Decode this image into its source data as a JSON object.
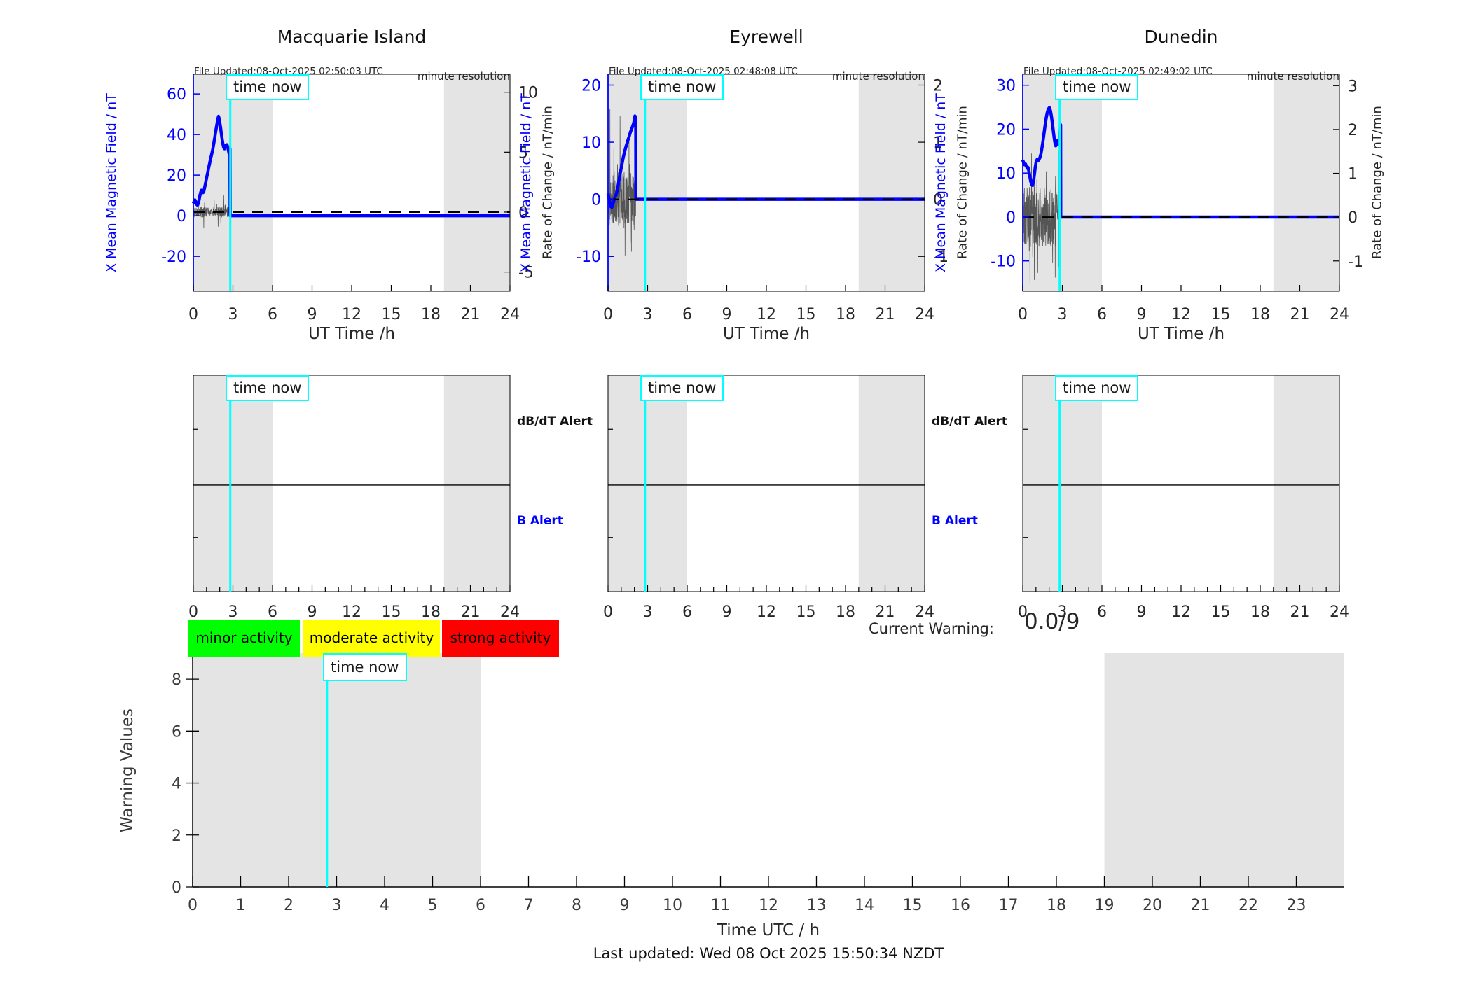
{
  "stations": [
    {
      "title": "Macquarie Island",
      "file_updated": "File Updated:08-Oct-2025 02:50:03 UTC",
      "resolution_note": "minute resolution",
      "time_now_label": "time now",
      "y_left_label": "X Mean Magnetic Field / nT",
      "y_right_label": "Rate of Change / nT/min",
      "x_label": "UT Time /h"
    },
    {
      "title": "Eyrewell",
      "file_updated": "File Updated:08-Oct-2025 02:48:08 UTC",
      "resolution_note": "minute resolution",
      "time_now_label": "time now",
      "y_left_label": "X Mean Magnetic Field / nT",
      "y_right_label": "Rate of Change / nT/min",
      "x_label": "UT Time /h"
    },
    {
      "title": "Dunedin",
      "file_updated": "File Updated:08-Oct-2025 02:49:02 UTC",
      "resolution_note": "minute resolution",
      "time_now_label": "time now",
      "y_left_label": "X Mean Magnetic Field / nT",
      "y_right_label": "Rate of Change / nT/min",
      "x_label": "UT Time /h"
    }
  ],
  "alerts": {
    "dbdt_label": "dB/dT Alert",
    "b_label": "B Alert",
    "time_now_label": "time now",
    "labeled_panels": [
      0,
      1
    ],
    "xticks": [
      0,
      3,
      6,
      9,
      12,
      15,
      18,
      21,
      24
    ],
    "night_shading_hours": [
      [
        0,
        6
      ],
      [
        19,
        24
      ]
    ],
    "time_now_h": 2.8
  },
  "legend": {
    "items": [
      {
        "label": "minor activity",
        "color": "#00ff00"
      },
      {
        "label": "moderate activity",
        "color": "#ffff00"
      },
      {
        "label": "strong activity",
        "color": "#ff0000"
      }
    ]
  },
  "current_warning": {
    "label": "Current Warning:",
    "value": "0.0/9"
  },
  "warning_panel": {
    "y_label": "Warning Values",
    "x_label": "Time UTC / h",
    "time_now_label": "time now"
  },
  "footer": {
    "last_updated": "Last updated: Wed 08 Oct 2025 15:50:34 NZDT"
  },
  "colors": {
    "accent_blue": "#0000ff",
    "cyan": "#00ffff",
    "band_gray": "#e4e4e4",
    "text_dark": "#262626",
    "noise_gray": "#555555",
    "legend_green": "#00ff00",
    "legend_yellow": "#ffff00",
    "legend_red": "#ff0000"
  },
  "chart_data": [
    {
      "id": "macquarie-island-field",
      "type": "line",
      "title": "Macquarie Island",
      "xlabel": "UT Time /h",
      "ylabel": "X Mean Magnetic Field / nT",
      "ylabel_right": "Rate of Change / nT/min",
      "xlim": [
        0,
        24
      ],
      "xticks": [
        0,
        3,
        6,
        9,
        12,
        15,
        18,
        21,
        24
      ],
      "ylim": [
        -37.2,
        69.7
      ],
      "yticks": [
        60,
        40,
        20,
        0,
        -20
      ],
      "ylim_right": [
        -6.6,
        11.5
      ],
      "yticks_right": [
        10,
        5,
        0,
        -5
      ],
      "night_shading_hours": [
        [
          0,
          6
        ],
        [
          19,
          24
        ]
      ],
      "time_now_h": 2.8,
      "series": [
        {
          "name": "X mean magnetic field (nT)",
          "color": "#0000ff",
          "points": [
            [
              0,
              6
            ],
            [
              0.06,
              7
            ],
            [
              0.12,
              7.8
            ],
            [
              0.18,
              6.8
            ],
            [
              0.25,
              5.6
            ],
            [
              0.32,
              5.2
            ],
            [
              0.38,
              6.2
            ],
            [
              0.44,
              8
            ],
            [
              0.5,
              10
            ],
            [
              0.56,
              11.6
            ],
            [
              0.62,
              12.6
            ],
            [
              0.68,
              12.2
            ],
            [
              0.74,
              11.4
            ],
            [
              0.8,
              12.2
            ],
            [
              0.86,
              14
            ],
            [
              0.93,
              16.2
            ],
            [
              1.0,
              18.6
            ],
            [
              1.08,
              21
            ],
            [
              1.16,
              23.6
            ],
            [
              1.24,
              26
            ],
            [
              1.32,
              28.4
            ],
            [
              1.4,
              30.6
            ],
            [
              1.48,
              33
            ],
            [
              1.55,
              35.6
            ],
            [
              1.62,
              38.4
            ],
            [
              1.69,
              41.4
            ],
            [
              1.76,
              44
            ],
            [
              1.82,
              46.4
            ],
            [
              1.87,
              48
            ],
            [
              1.91,
              49
            ],
            [
              1.95,
              48
            ],
            [
              2.0,
              46
            ],
            [
              2.06,
              43.6
            ],
            [
              2.12,
              40.6
            ],
            [
              2.18,
              37.8
            ],
            [
              2.24,
              35.4
            ],
            [
              2.3,
              33.6
            ],
            [
              2.36,
              33
            ],
            [
              2.42,
              33.8
            ],
            [
              2.48,
              34.8
            ],
            [
              2.54,
              35
            ],
            [
              2.6,
              34
            ],
            [
              2.66,
              32.2
            ],
            [
              2.71,
              30.6
            ],
            [
              2.74,
              31.6
            ],
            [
              2.77,
              33
            ],
            [
              2.78,
              33
            ],
            [
              2.79,
              0
            ],
            [
              24,
              0
            ]
          ]
        },
        {
          "name": "rate of change (nT/min, right axis)",
          "color": "#555555",
          "style": "noise",
          "noise": {
            "seed": 3,
            "amp": 0.45,
            "x_start": 0.05,
            "x_end": 2.8,
            "n": 230
          }
        },
        {
          "name": "zero reference (dashed)",
          "color": "#000000",
          "style": "dashed-zero"
        }
      ]
    },
    {
      "id": "eyrewell-field",
      "type": "line",
      "title": "Eyrewell",
      "xlabel": "UT Time /h",
      "ylabel": "X Mean Magnetic Field / nT",
      "ylabel_right": "Rate of Change / nT/min",
      "xlim": [
        0,
        24
      ],
      "xticks": [
        0,
        3,
        6,
        9,
        12,
        15,
        18,
        21,
        24
      ],
      "ylim": [
        -16.1,
        21.9
      ],
      "yticks": [
        20,
        10,
        0,
        -10
      ],
      "ylim_right": [
        -1.61,
        2.19
      ],
      "yticks_right": [
        2,
        1,
        0,
        -1
      ],
      "night_shading_hours": [
        [
          0,
          6
        ],
        [
          19,
          24
        ]
      ],
      "time_now_h": 2.8,
      "series": [
        {
          "name": "X mean magnetic field (nT)",
          "color": "#0000ff",
          "points": [
            [
              0,
              1
            ],
            [
              0.05,
              0.4
            ],
            [
              0.1,
              -0.2
            ],
            [
              0.16,
              -0.8
            ],
            [
              0.22,
              -1.3
            ],
            [
              0.28,
              -1.4
            ],
            [
              0.34,
              -1.1
            ],
            [
              0.4,
              -0.6
            ],
            [
              0.46,
              -0.1
            ],
            [
              0.52,
              0.3
            ],
            [
              0.58,
              0.6
            ],
            [
              0.65,
              1.1
            ],
            [
              0.72,
              1.9
            ],
            [
              0.8,
              2.9
            ],
            [
              0.88,
              4
            ],
            [
              0.96,
              5
            ],
            [
              1.05,
              6.1
            ],
            [
              1.14,
              7.2
            ],
            [
              1.23,
              8.1
            ],
            [
              1.32,
              8.9
            ],
            [
              1.41,
              9.6
            ],
            [
              1.5,
              10.3
            ],
            [
              1.6,
              11
            ],
            [
              1.7,
              11.8
            ],
            [
              1.8,
              12.4
            ],
            [
              1.88,
              12.9
            ],
            [
              1.95,
              13.4
            ],
            [
              2.0,
              14
            ],
            [
              2.04,
              14.6
            ],
            [
              2.08,
              14.4
            ],
            [
              2.1,
              14.1
            ],
            [
              2.11,
              0
            ],
            [
              24,
              0
            ]
          ]
        },
        {
          "name": "rate of change (nT/min, right axis)",
          "color": "#555555",
          "style": "noise",
          "noise": {
            "seed": 5,
            "amp": 0.5,
            "x_start": 0.05,
            "x_end": 2.1,
            "n": 200
          }
        },
        {
          "name": "zero reference (dashed)",
          "color": "#000000",
          "style": "dashed-zero"
        }
      ]
    },
    {
      "id": "dunedin-field",
      "type": "line",
      "title": "Dunedin",
      "xlabel": "UT Time /h",
      "ylabel": "X Mean Magnetic Field / nT",
      "ylabel_right": "Rate of Change / nT/min",
      "xlim": [
        0,
        24
      ],
      "xticks": [
        0,
        3,
        6,
        9,
        12,
        15,
        18,
        21,
        24
      ],
      "ylim": [
        -16.9,
        32.5
      ],
      "yticks": [
        30,
        20,
        10,
        0,
        -10
      ],
      "ylim_right": [
        -1.69,
        3.26
      ],
      "yticks_right": [
        3,
        2,
        1,
        0,
        -1
      ],
      "night_shading_hours": [
        [
          0,
          6
        ],
        [
          19,
          24
        ]
      ],
      "time_now_h": 2.8,
      "series": [
        {
          "name": "X mean magnetic field (nT)",
          "color": "#0000ff",
          "points": [
            [
              0,
              13
            ],
            [
              0.07,
              12.3
            ],
            [
              0.14,
              11.9
            ],
            [
              0.2,
              12.1
            ],
            [
              0.27,
              11.6
            ],
            [
              0.34,
              11.1
            ],
            [
              0.4,
              11.3
            ],
            [
              0.47,
              10.4
            ],
            [
              0.54,
              9.2
            ],
            [
              0.61,
              8
            ],
            [
              0.68,
              7.4
            ],
            [
              0.75,
              7.2
            ],
            [
              0.81,
              8.1
            ],
            [
              0.88,
              9.6
            ],
            [
              0.95,
              11.4
            ],
            [
              1.02,
              12.6
            ],
            [
              1.09,
              13.1
            ],
            [
              1.16,
              12.8
            ],
            [
              1.23,
              13.1
            ],
            [
              1.3,
              13.5
            ],
            [
              1.38,
              14.4
            ],
            [
              1.46,
              15.8
            ],
            [
              1.54,
              17.4
            ],
            [
              1.62,
              19.2
            ],
            [
              1.7,
              21
            ],
            [
              1.78,
              22.6
            ],
            [
              1.86,
              23.8
            ],
            [
              1.94,
              24.6
            ],
            [
              2.02,
              24.9
            ],
            [
              2.1,
              24.2
            ],
            [
              2.18,
              22.8
            ],
            [
              2.26,
              21
            ],
            [
              2.34,
              19
            ],
            [
              2.42,
              17.2
            ],
            [
              2.5,
              16.2
            ],
            [
              2.57,
              16.6
            ],
            [
              2.64,
              17.4
            ],
            [
              2.71,
              16.8
            ],
            [
              2.77,
              16.4
            ],
            [
              2.82,
              18.5
            ],
            [
              2.86,
              21
            ],
            [
              2.87,
              21
            ],
            [
              2.88,
              0
            ],
            [
              24,
              0
            ]
          ]
        },
        {
          "name": "rate of change (nT/min, right axis)",
          "color": "#555555",
          "style": "noise",
          "noise": {
            "seed": 9,
            "amp": 0.7,
            "x_start": 0.05,
            "x_end": 2.85,
            "n": 230
          }
        },
        {
          "name": "zero reference (dashed)",
          "color": "#000000",
          "style": "dashed-zero"
        }
      ]
    },
    {
      "id": "warning-values",
      "type": "line",
      "title": "",
      "xlabel": "Time UTC / h",
      "ylabel": "Warning Values",
      "xlim": [
        0,
        24
      ],
      "xticks": [
        0,
        1,
        2,
        3,
        4,
        5,
        6,
        7,
        8,
        9,
        10,
        11,
        12,
        13,
        14,
        15,
        16,
        17,
        18,
        19,
        20,
        21,
        22,
        23
      ],
      "ylim": [
        0,
        9
      ],
      "yticks": [
        0,
        2,
        4,
        6,
        8
      ],
      "night_shading_hours": [
        [
          0,
          6
        ],
        [
          19,
          24
        ]
      ],
      "time_now_h": 2.8,
      "current_warning_value": 0.0,
      "warning_scale_max": 9,
      "series": []
    }
  ]
}
